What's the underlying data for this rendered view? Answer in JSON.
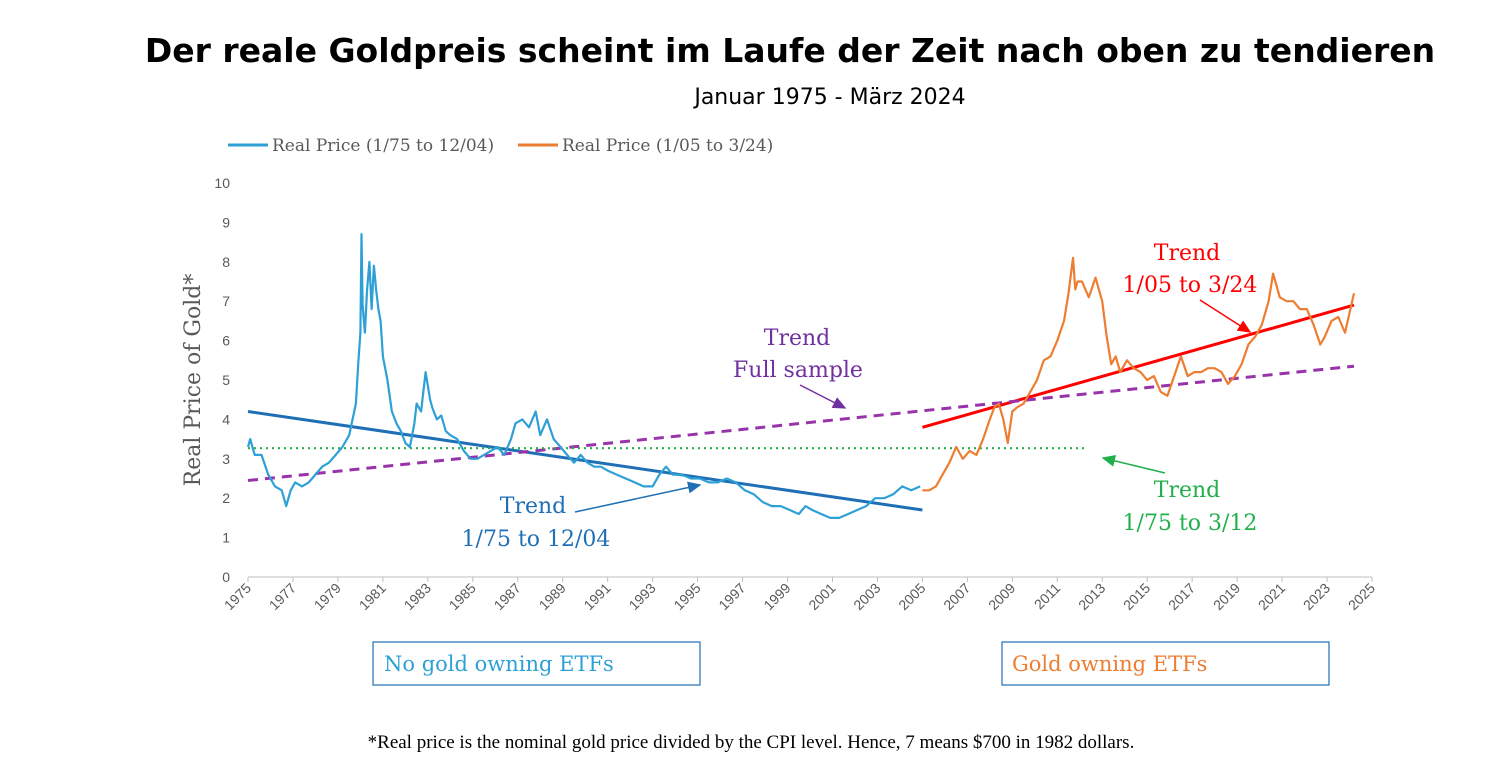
{
  "header": {
    "title": "Der reale Goldpreis scheint im Laufe der Zeit nach oben zu tendieren",
    "subtitle": "Januar 1975 - März 2024"
  },
  "legend": [
    {
      "label": "Real Price (1/75 to 12/04)",
      "color": "#2ea0d6"
    },
    {
      "label": "Real Price (1/05 to 3/24)",
      "color": "#ed7d31"
    }
  ],
  "annotations": {
    "trend_full_line1": "Trend",
    "trend_full_line2": "Full sample",
    "trend_recent_line1": "Trend",
    "trend_recent_line2": "1/05 to 3/24",
    "trend_early_line1": "Trend",
    "trend_early_line2": "1/75 to 12/04",
    "trend_green_line1": "Trend",
    "trend_green_line2": "1/75 to 3/12"
  },
  "boxes": {
    "left": "No gold owning ETFs",
    "right": "Gold owning ETFs"
  },
  "footnote": "*Real price is the nominal gold price divided by the CPI level. Hence, 7 means $700 in 1982 dollars.",
  "colors": {
    "early": "#2ea0d6",
    "recent": "#ed7d31",
    "trend_early": "#1f6fb6",
    "trend_recent": "#ff0000",
    "trend_full": "#9933aa",
    "trend_green": "#22b04c",
    "annot_blue": "#1f6fb6",
    "annot_purple": "#7030a0",
    "annot_red": "#ff0000",
    "annot_green": "#22b04c"
  },
  "chart_data": {
    "type": "line",
    "ylabel": "Real Price of Gold*",
    "xlim": [
      1975,
      2025
    ],
    "ylim": [
      0,
      10
    ],
    "yticks": [
      0,
      1,
      2,
      3,
      4,
      5,
      6,
      7,
      8,
      9,
      10
    ],
    "xticks": [
      1975,
      1977,
      1979,
      1981,
      1983,
      1985,
      1987,
      1989,
      1991,
      1993,
      1995,
      1997,
      1999,
      2001,
      2003,
      2005,
      2007,
      2009,
      2011,
      2013,
      2015,
      2017,
      2019,
      2021,
      2023,
      2025
    ],
    "grid": false,
    "legend_position": "top-left",
    "series": [
      {
        "name": "Real Price (1/75 to 12/04)",
        "x": [
          1975.0,
          1975.1,
          1975.3,
          1975.6,
          1975.9,
          1976.2,
          1976.5,
          1976.7,
          1976.9,
          1977.1,
          1977.4,
          1977.7,
          1978.0,
          1978.3,
          1978.6,
          1978.9,
          1979.2,
          1979.5,
          1979.8,
          1979.9,
          1980.0,
          1980.05,
          1980.1,
          1980.2,
          1980.3,
          1980.4,
          1980.5,
          1980.6,
          1980.7,
          1980.8,
          1980.9,
          1981.0,
          1981.2,
          1981.4,
          1981.6,
          1981.8,
          1982.0,
          1982.2,
          1982.4,
          1982.5,
          1982.7,
          1982.9,
          1983.1,
          1983.2,
          1983.4,
          1983.6,
          1983.8,
          1984.0,
          1984.3,
          1984.6,
          1984.9,
          1985.2,
          1985.5,
          1985.8,
          1986.1,
          1986.4,
          1986.7,
          1986.9,
          1987.2,
          1987.5,
          1987.8,
          1988.0,
          1988.3,
          1988.6,
          1988.9,
          1989.2,
          1989.5,
          1989.8,
          1990.1,
          1990.4,
          1990.7,
          1991.0,
          1991.4,
          1991.8,
          1992.2,
          1992.6,
          1993.0,
          1993.3,
          1993.6,
          1993.9,
          1994.3,
          1994.7,
          1995.1,
          1995.5,
          1995.9,
          1996.3,
          1996.7,
          1997.1,
          1997.5,
          1997.9,
          1998.3,
          1998.7,
          1999.1,
          1999.5,
          1999.8,
          2000.1,
          2000.5,
          2000.9,
          2001.3,
          2001.7,
          2002.1,
          2002.5,
          2002.9,
          2003.3,
          2003.7,
          2004.1,
          2004.5,
          2004.9
        ],
        "values": [
          3.3,
          3.5,
          3.1,
          3.1,
          2.6,
          2.3,
          2.2,
          1.8,
          2.2,
          2.4,
          2.3,
          2.4,
          2.6,
          2.8,
          2.9,
          3.1,
          3.3,
          3.6,
          4.4,
          5.4,
          6.2,
          8.7,
          6.9,
          6.2,
          7.3,
          8.0,
          6.8,
          7.9,
          7.3,
          6.8,
          6.5,
          5.6,
          5.0,
          4.2,
          3.9,
          3.7,
          3.4,
          3.3,
          3.9,
          4.4,
          4.2,
          5.2,
          4.5,
          4.3,
          4.0,
          4.1,
          3.7,
          3.6,
          3.5,
          3.2,
          3.0,
          3.0,
          3.1,
          3.2,
          3.3,
          3.1,
          3.5,
          3.9,
          4.0,
          3.8,
          4.2,
          3.6,
          4.0,
          3.5,
          3.3,
          3.1,
          2.9,
          3.1,
          2.9,
          2.8,
          2.8,
          2.7,
          2.6,
          2.5,
          2.4,
          2.3,
          2.3,
          2.6,
          2.8,
          2.6,
          2.6,
          2.5,
          2.5,
          2.4,
          2.4,
          2.5,
          2.4,
          2.2,
          2.1,
          1.9,
          1.8,
          1.8,
          1.7,
          1.6,
          1.8,
          1.7,
          1.6,
          1.5,
          1.5,
          1.6,
          1.7,
          1.8,
          2.0,
          2.0,
          2.1,
          2.3,
          2.2,
          2.3
        ]
      },
      {
        "name": "Real Price (1/05 to 3/24)",
        "x": [
          2005.0,
          2005.3,
          2005.6,
          2005.9,
          2006.2,
          2006.5,
          2006.8,
          2007.1,
          2007.4,
          2007.7,
          2008.0,
          2008.2,
          2008.4,
          2008.6,
          2008.8,
          2009.0,
          2009.2,
          2009.5,
          2009.8,
          2010.1,
          2010.4,
          2010.7,
          2011.0,
          2011.3,
          2011.5,
          2011.7,
          2011.8,
          2011.9,
          2012.1,
          2012.4,
          2012.7,
          2013.0,
          2013.2,
          2013.4,
          2013.6,
          2013.8,
          2014.1,
          2014.4,
          2014.7,
          2015.0,
          2015.3,
          2015.6,
          2015.9,
          2016.2,
          2016.5,
          2016.8,
          2017.1,
          2017.4,
          2017.7,
          2018.0,
          2018.3,
          2018.6,
          2018.9,
          2019.2,
          2019.5,
          2019.8,
          2020.1,
          2020.4,
          2020.6,
          2020.9,
          2021.2,
          2021.5,
          2021.8,
          2022.1,
          2022.4,
          2022.7,
          2022.9,
          2023.2,
          2023.5,
          2023.8,
          2024.0,
          2024.2
        ],
        "values": [
          2.2,
          2.2,
          2.3,
          2.6,
          2.9,
          3.3,
          3.0,
          3.2,
          3.1,
          3.5,
          4.0,
          4.3,
          4.4,
          4.0,
          3.4,
          4.2,
          4.3,
          4.4,
          4.7,
          5.0,
          5.5,
          5.6,
          6.0,
          6.5,
          7.2,
          8.1,
          7.3,
          7.5,
          7.5,
          7.1,
          7.6,
          7.0,
          6.1,
          5.4,
          5.6,
          5.2,
          5.5,
          5.3,
          5.2,
          5.0,
          5.1,
          4.7,
          4.6,
          5.1,
          5.6,
          5.1,
          5.2,
          5.2,
          5.3,
          5.3,
          5.2,
          4.9,
          5.1,
          5.4,
          5.9,
          6.1,
          6.4,
          7.0,
          7.7,
          7.1,
          7.0,
          7.0,
          6.8,
          6.8,
          6.4,
          5.9,
          6.1,
          6.5,
          6.6,
          6.2,
          6.7,
          7.2
        ]
      },
      {
        "name": "Trend 1/75 to 12/04",
        "x": [
          1975.0,
          2005.0
        ],
        "values": [
          4.2,
          1.7
        ]
      },
      {
        "name": "Trend 1/05 to 3/24",
        "x": [
          2005.0,
          2024.2
        ],
        "values": [
          3.8,
          6.9
        ]
      },
      {
        "name": "Trend Full sample",
        "x": [
          1975.0,
          2024.2
        ],
        "values": [
          2.45,
          5.35
        ]
      },
      {
        "name": "Trend 1/75 to 3/12",
        "x": [
          1975.0,
          2012.2
        ],
        "values": [
          3.27,
          3.27
        ]
      }
    ]
  }
}
